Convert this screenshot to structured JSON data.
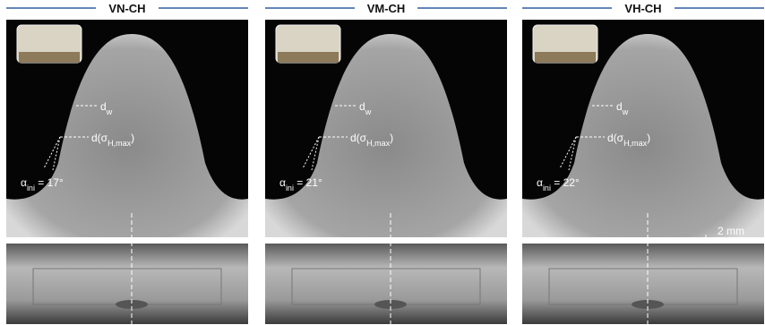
{
  "panels": [
    {
      "title": "VN-CH",
      "labels": {
        "dw": [
          "d",
          "w"
        ],
        "dsigma": [
          "d(σ",
          "H,max",
          ")"
        ],
        "alpha": [
          "α",
          "ini",
          " = 17°"
        ]
      }
    },
    {
      "title": "VM-CH",
      "labels": {
        "dw": [
          "d",
          "w"
        ],
        "dsigma": [
          "d(σ",
          "H,max",
          ")"
        ],
        "alpha": [
          "α",
          "ini",
          " = 21°"
        ]
      }
    },
    {
      "title": "VH-CH",
      "labels": {
        "dw": [
          "d",
          "w"
        ],
        "dsigma": [
          "d(σ",
          "H,max",
          ")"
        ],
        "alpha": [
          "α",
          "ini",
          " = 22°"
        ]
      }
    }
  ],
  "scale_bar": "2 mm"
}
